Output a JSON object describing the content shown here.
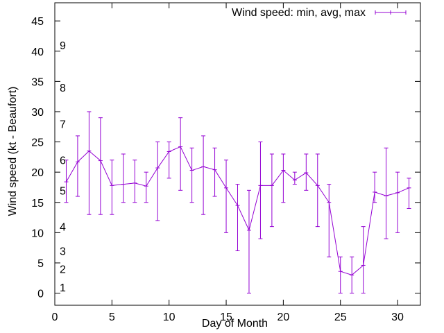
{
  "chart_data": {
    "type": "line",
    "title": "",
    "xlabel": "Day of Month",
    "ylabel": "Wind speed (kt - Beaufort)",
    "xlim": [
      0,
      32
    ],
    "ylim": [
      -2,
      48
    ],
    "x_ticks": [
      0,
      5,
      10,
      15,
      20,
      25,
      30
    ],
    "y_ticks": [
      0,
      5,
      10,
      15,
      20,
      25,
      30,
      35,
      40,
      45
    ],
    "grid": false,
    "legend": {
      "placement": "top-right"
    },
    "series_color": "#9400d3",
    "series": [
      {
        "name": "Wind speed: min, avg, max",
        "x": [
          1,
          2,
          3,
          4,
          5,
          6,
          7,
          8,
          9,
          10,
          11,
          12,
          13,
          14,
          15,
          16,
          17,
          18,
          19,
          20,
          21,
          22,
          23,
          24,
          25,
          26,
          27,
          28,
          29,
          30,
          31
        ],
        "avg": [
          18.4,
          21.7,
          23.5,
          21.9,
          17.8,
          18.0,
          18.2,
          17.7,
          20.7,
          23.4,
          24.2,
          20.3,
          20.9,
          20.4,
          17.4,
          14.5,
          10.4,
          17.8,
          17.8,
          20.3,
          18.7,
          19.9,
          17.8,
          15.0,
          3.6,
          3.0,
          4.6,
          16.7,
          16.1,
          16.6,
          17.4
        ],
        "min": [
          15,
          16,
          13,
          13,
          13,
          15,
          15,
          15,
          12,
          19,
          17,
          15,
          13,
          16,
          10,
          7,
          0,
          9,
          11,
          15,
          18,
          17,
          11,
          6,
          0,
          0,
          0,
          15,
          9,
          10,
          14
        ],
        "max": [
          22,
          26,
          30,
          29,
          22,
          23,
          22,
          20,
          25,
          25,
          29,
          24,
          26,
          24,
          22,
          18,
          17,
          25,
          23,
          23,
          20,
          23,
          23,
          18,
          6,
          6,
          11,
          20,
          24,
          20,
          19
        ]
      }
    ],
    "beaufort_annotations": [
      {
        "label": "1",
        "y": 1
      },
      {
        "label": "2",
        "y": 4
      },
      {
        "label": "3",
        "y": 7
      },
      {
        "label": "4",
        "y": 11
      },
      {
        "label": "5",
        "y": 17
      },
      {
        "label": "6",
        "y": 22
      },
      {
        "label": "7",
        "y": 28
      },
      {
        "label": "8",
        "y": 34
      },
      {
        "label": "9",
        "y": 41
      }
    ]
  }
}
